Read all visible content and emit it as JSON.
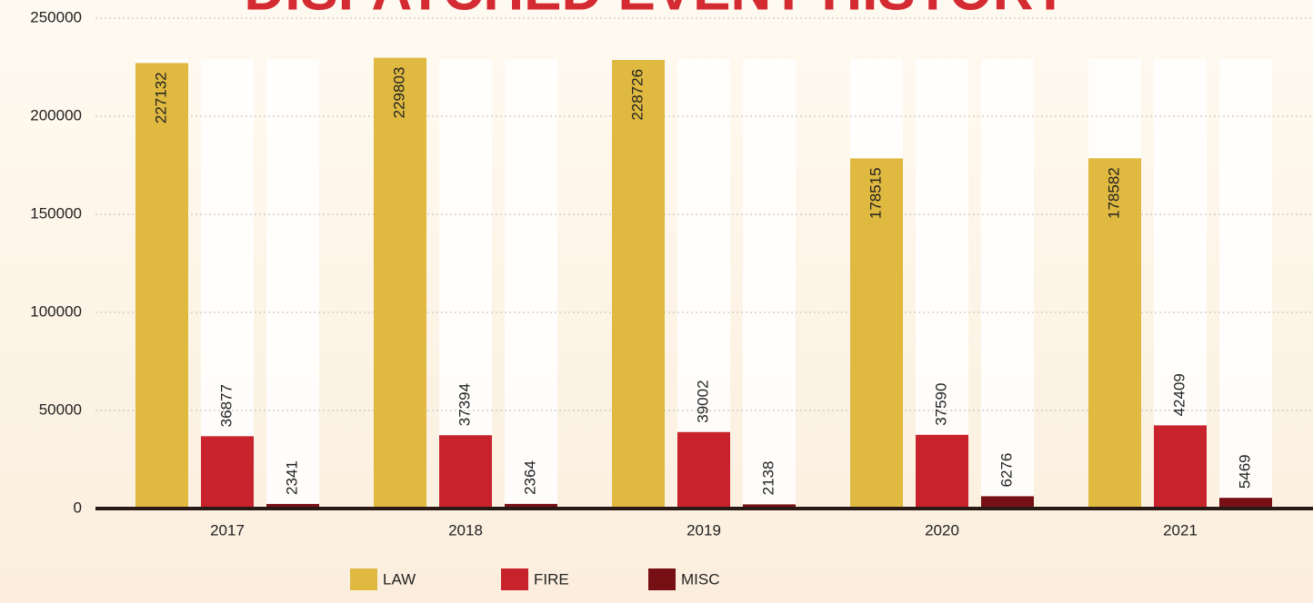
{
  "chart_data": {
    "type": "bar",
    "title": "DISPATCHED EVENT HISTORY",
    "categories": [
      "2017",
      "2018",
      "2019",
      "2020",
      "2021"
    ],
    "series": [
      {
        "name": "LAW",
        "color": "#e0b941",
        "values": [
          227132,
          229803,
          228726,
          178515,
          178582
        ]
      },
      {
        "name": "FIRE",
        "color": "#c8232c",
        "values": [
          36877,
          37394,
          39002,
          37590,
          42409
        ]
      },
      {
        "name": "MISC",
        "color": "#761015",
        "values": [
          2341,
          2364,
          2138,
          6276,
          5469
        ]
      }
    ],
    "ylim": [
      0,
      250000
    ],
    "yticks": [
      0,
      50000,
      100000,
      150000,
      200000,
      250000
    ],
    "grid": true,
    "legend": "bottom"
  }
}
